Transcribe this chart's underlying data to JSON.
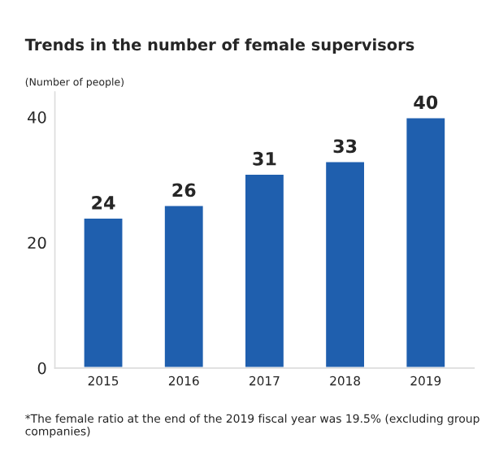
{
  "chart_data": {
    "type": "bar",
    "title": "Trends in the number of female supervisors",
    "ylabel": "(Number of people)",
    "categories": [
      "2015",
      "2016",
      "2017",
      "2018",
      "2019"
    ],
    "values": [
      24,
      26,
      31,
      33,
      40
    ],
    "color": "#1f5fae",
    "data_labels": true,
    "ylim": [
      0,
      44
    ],
    "yticks": [
      0,
      20,
      40
    ],
    "grid": false,
    "legend": false,
    "annotations": [
      "*The female ratio at the end of the 2019 fiscal year was 19.5% (excluding group companies)"
    ]
  }
}
